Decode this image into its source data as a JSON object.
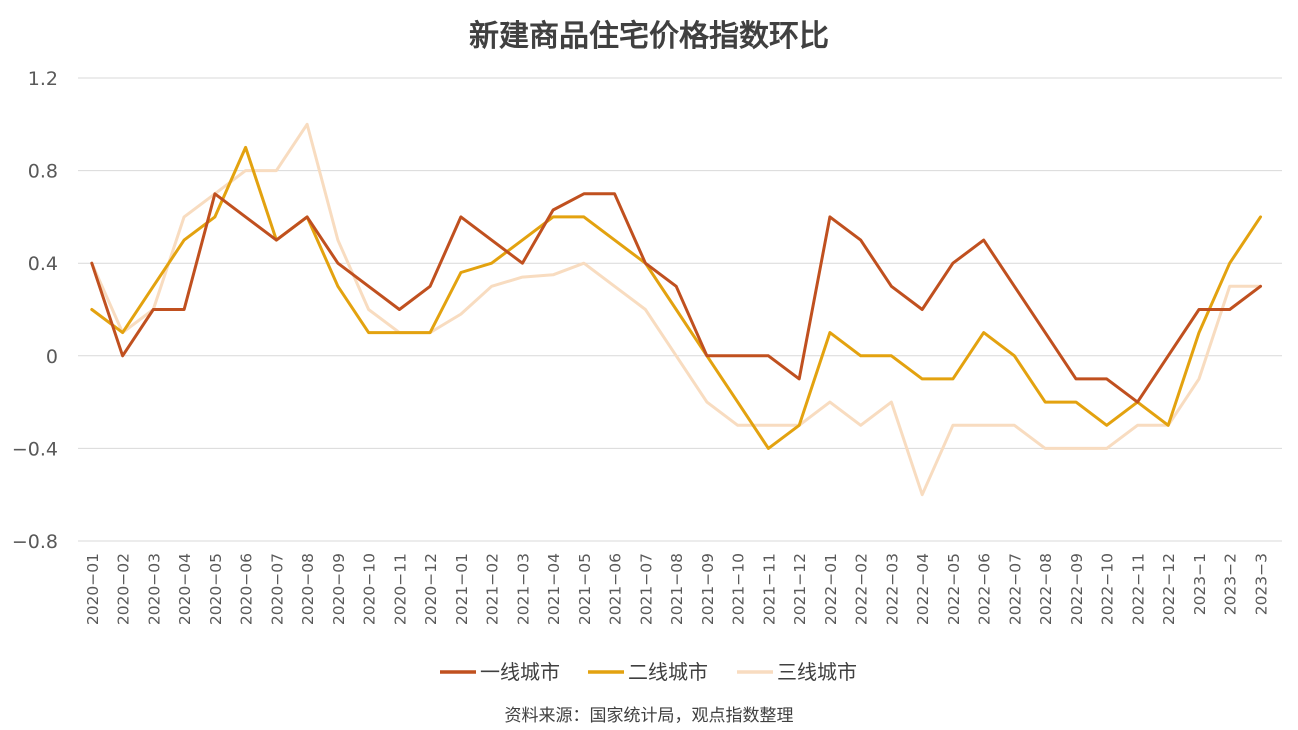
{
  "chart_data": {
    "type": "line",
    "title": "新建商品住宅价格指数环比",
    "xlabel": "",
    "ylabel": "",
    "ylim": [
      -0.8,
      1.2
    ],
    "yticks": [
      1.2,
      0.8,
      0.4,
      0,
      -0.4,
      -0.8
    ],
    "ytick_labels": [
      "1.2",
      "0.8",
      "0.4",
      "0",
      "−0.4",
      "−0.8"
    ],
    "grid": true,
    "legend_position": "bottom",
    "source": "资料来源：国家统计局，观点指数整理",
    "x": [
      "2020−01",
      "2020−02",
      "2020−03",
      "2020−04",
      "2020−05",
      "2020−06",
      "2020−07",
      "2020−08",
      "2020−09",
      "2020−10",
      "2020−11",
      "2020−12",
      "2021−01",
      "2021−02",
      "2021−03",
      "2021−04",
      "2021−05",
      "2021−06",
      "2021−07",
      "2021−08",
      "2021−09",
      "2021−10",
      "2021−11",
      "2021−12",
      "2022−01",
      "2022−02",
      "2022−03",
      "2022−04",
      "2022−05",
      "2022−06",
      "2022−07",
      "2022−08",
      "2022−09",
      "2022−10",
      "2022−11",
      "2022−12",
      "2023−1",
      "2023−2",
      "2023−3"
    ],
    "series": [
      {
        "name": "一线城市",
        "color": "#C0501F",
        "values": [
          0.4,
          0.0,
          0.2,
          0.2,
          0.7,
          0.6,
          0.5,
          0.6,
          0.4,
          0.3,
          0.2,
          0.3,
          0.6,
          0.5,
          0.4,
          0.63,
          0.7,
          0.7,
          0.4,
          0.3,
          0.0,
          0.0,
          0.0,
          -0.1,
          0.6,
          0.5,
          0.3,
          0.2,
          0.4,
          0.5,
          0.3,
          0.1,
          -0.1,
          -0.1,
          -0.2,
          0.0,
          0.2,
          0.2,
          0.3
        ]
      },
      {
        "name": "二线城市",
        "color": "#E3A20F",
        "values": [
          0.2,
          0.1,
          0.3,
          0.5,
          0.6,
          0.9,
          0.5,
          0.6,
          0.3,
          0.1,
          0.1,
          0.1,
          0.36,
          0.4,
          0.5,
          0.6,
          0.6,
          0.5,
          0.4,
          0.2,
          0.0,
          -0.2,
          -0.4,
          -0.3,
          0.1,
          0.0,
          0.0,
          -0.1,
          -0.1,
          0.1,
          0.0,
          -0.2,
          -0.2,
          -0.3,
          -0.2,
          -0.3,
          0.1,
          0.4,
          0.6
        ]
      },
      {
        "name": "三线城市",
        "color": "#F8DCC0",
        "values": [
          0.4,
          0.1,
          0.2,
          0.6,
          0.7,
          0.8,
          0.8,
          1.0,
          0.5,
          0.2,
          0.1,
          0.1,
          0.18,
          0.3,
          0.34,
          0.35,
          0.4,
          0.3,
          0.2,
          0.0,
          -0.2,
          -0.3,
          -0.3,
          -0.3,
          -0.2,
          -0.3,
          -0.2,
          -0.6,
          -0.3,
          -0.3,
          -0.3,
          -0.4,
          -0.4,
          -0.4,
          -0.3,
          -0.3,
          -0.1,
          0.3,
          0.3
        ]
      }
    ]
  }
}
